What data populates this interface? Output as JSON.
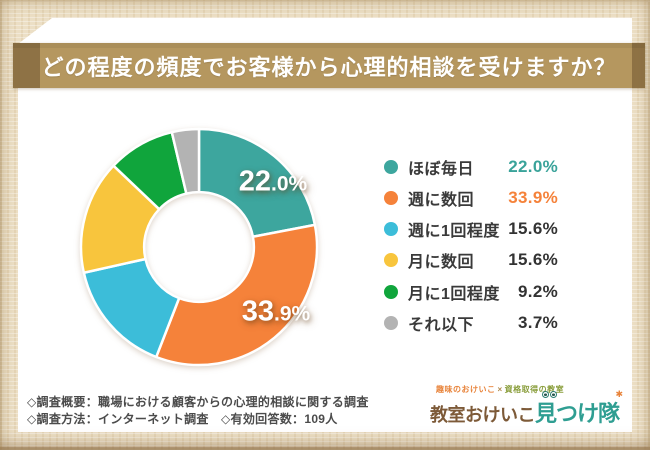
{
  "page": {
    "bg_color": "#ecdfc5",
    "card_color": "#ffffff"
  },
  "header": {
    "title": "どの程度の頻度でお客様から心理的相談を受けますか？",
    "banner_color": "#b5975f",
    "banner_end_color": "#8e7245",
    "text_color": "#ffffff"
  },
  "chart_data": {
    "type": "pie",
    "subtype": "donut",
    "title": "どの程度の頻度でお客様から心理的相談を受けますか？",
    "categories": [
      "ほぼ毎日",
      "週に数回",
      "週に1回程度",
      "月に数回",
      "月に1回程度",
      "それ以下"
    ],
    "values": [
      22.0,
      33.9,
      15.6,
      15.6,
      9.2,
      3.7
    ],
    "unit": "%",
    "colors": [
      "#3da69e",
      "#f5823a",
      "#3cbdd9",
      "#f8c53d",
      "#10a53c",
      "#b3b3b3"
    ],
    "start_angle_deg": 0,
    "start_position": "top",
    "direction": "clockwise",
    "inner_radius_ratio": 0.465,
    "on_slice_labels": [
      "22.0%",
      "33.9%",
      "",
      "",
      "",
      ""
    ],
    "legend_position": "right"
  },
  "legend": {
    "items": [
      {
        "label": "ほぼ毎日",
        "value": "22.0%",
        "color": "#3da69e",
        "value_color": "#3aa39a"
      },
      {
        "label": "週に数回",
        "value": "33.9%",
        "color": "#f5823a",
        "value_color": "#f5823a"
      },
      {
        "label": "週に1回程度",
        "value": "15.6%",
        "color": "#3cbdd9",
        "value_color": "#333333"
      },
      {
        "label": "月に数回",
        "value": "15.6%",
        "color": "#f8c53d",
        "value_color": "#333333"
      },
      {
        "label": "月に1回程度",
        "value": "9.2%",
        "color": "#10a53c",
        "value_color": "#333333"
      },
      {
        "label": "それ以下",
        "value": "3.7%",
        "color": "#b3b3b3",
        "value_color": "#333333"
      }
    ]
  },
  "footer": {
    "line1": "◇調査概要：職場における顧客からの心理的相談に関する調査",
    "line2": "◇調査方法：インターネット調査　◇有効回答数：109人"
  },
  "logo": {
    "tagline_left": "趣味のおけいこ",
    "tagline_sep": "×",
    "tagline_right": "資格取得の教室",
    "main_left": "教室おけいこ",
    "main_right": "見つけ隊",
    "main_left_color": "#7d5a38",
    "main_right_color": "#2f9e92"
  }
}
